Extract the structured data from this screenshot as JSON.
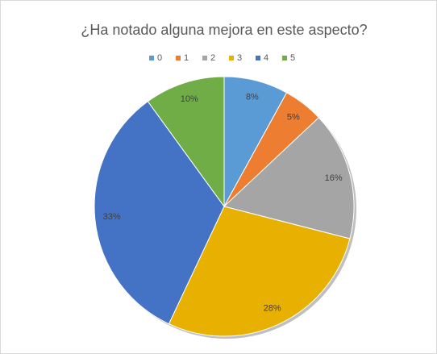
{
  "chart_data": {
    "type": "pie",
    "title": "¿Ha notado alguna mejora en este aspecto?",
    "categories": [
      "0",
      "1",
      "2",
      "3",
      "4",
      "5"
    ],
    "values": [
      8,
      5,
      16,
      28,
      33,
      10
    ],
    "value_labels": [
      "8%",
      "5%",
      "16%",
      "28%",
      "33%",
      "10%"
    ],
    "colors": [
      "#5b9bd5",
      "#ed7d31",
      "#a5a5a5",
      "#e8b000",
      "#4472c4",
      "#70ad47"
    ],
    "legend": "top"
  }
}
